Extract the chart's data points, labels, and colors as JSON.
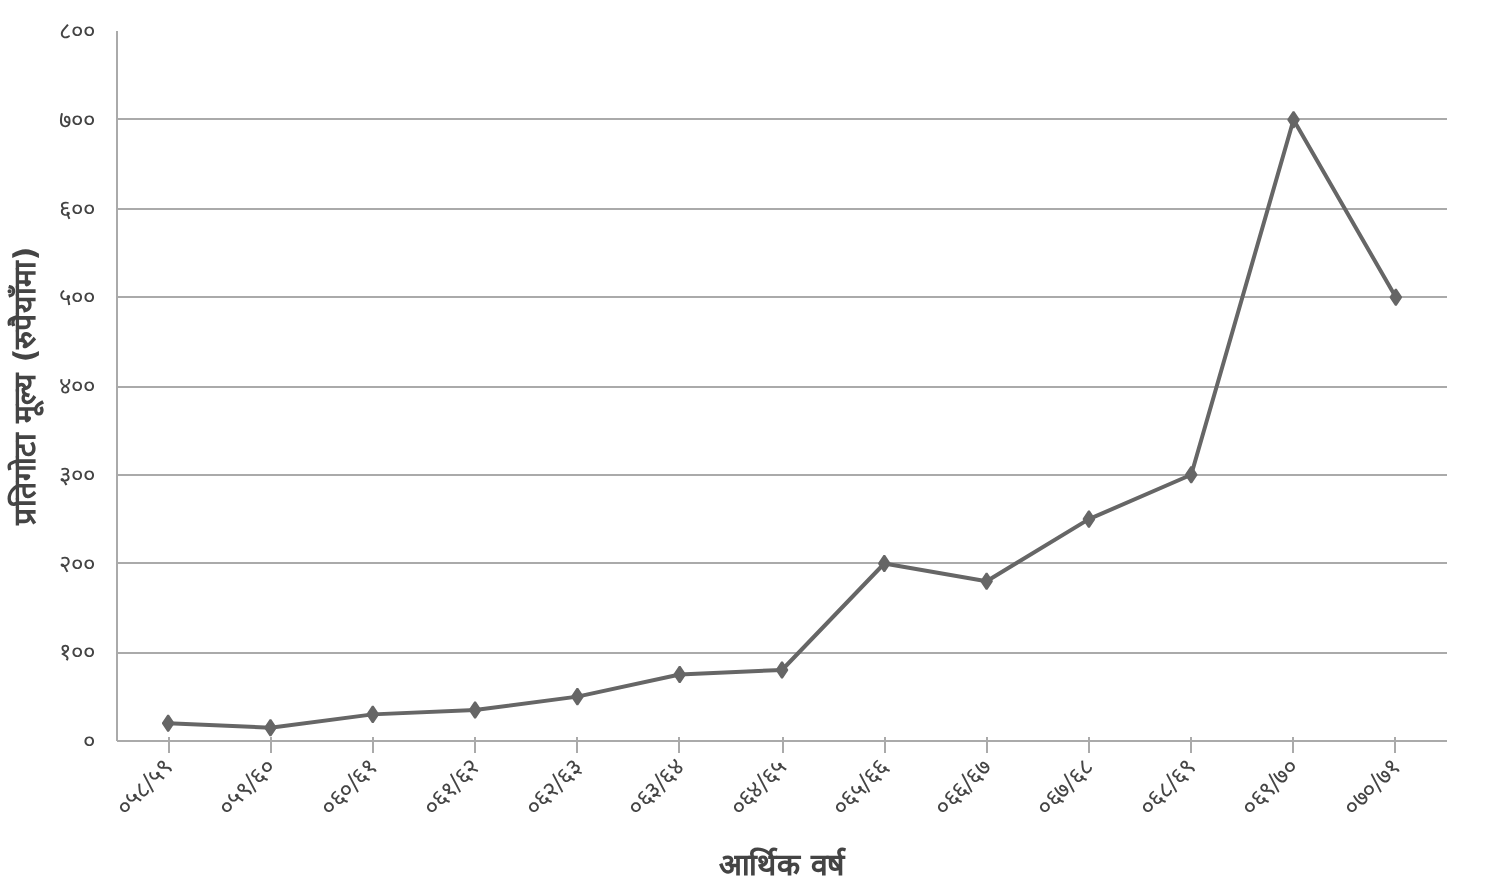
{
  "chart_data": {
    "type": "line",
    "xlabel": "आर्थिक वर्ष",
    "ylabel": "प्रतिगोटा मूल्य (रुपैयाँमा)",
    "categories": [
      "०५८/५९",
      "०५९/६०",
      "०६०/६१",
      "०६१/६२",
      "०६२/६३",
      "०६३/६४",
      "०६४/६५",
      "०६५/६६",
      "०६६/६७",
      "०६७/६८",
      "०६८/६९",
      "०६९/७०",
      "०७०/७१"
    ],
    "series": [
      {
        "color": "#666666",
        "values": [
          20,
          15,
          30,
          35,
          50,
          75,
          80,
          200,
          180,
          250,
          300,
          700,
          500
        ]
      }
    ],
    "ylim": [
      0,
      800
    ],
    "yticks": [
      {
        "value": 0,
        "label": "०"
      },
      {
        "value": 100,
        "label": "१००"
      },
      {
        "value": 200,
        "label": "२००"
      },
      {
        "value": 300,
        "label": "३००"
      },
      {
        "value": 400,
        "label": "४००"
      },
      {
        "value": 500,
        "label": "५००"
      },
      {
        "value": 600,
        "label": "६००"
      },
      {
        "value": 700,
        "label": "७००"
      },
      {
        "value": 800,
        "label": "८००"
      }
    ],
    "grid": "y",
    "marker": "diamond"
  }
}
